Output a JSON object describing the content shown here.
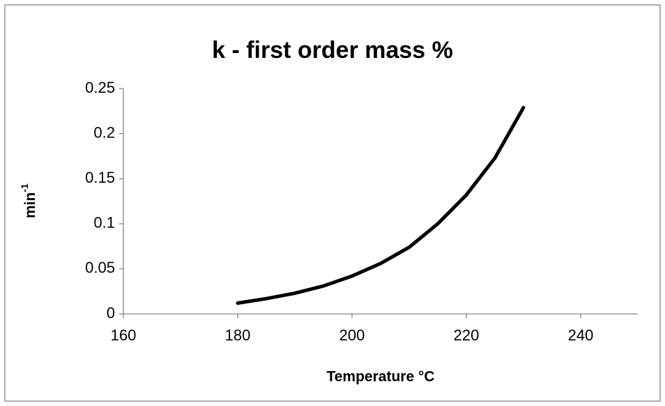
{
  "chart_data": {
    "type": "line",
    "title": "k - first order mass %",
    "xlabel": "Temperature °C",
    "ylabel": "min",
    "ylabel_sup": "-1",
    "x": [
      180,
      185,
      190,
      195,
      200,
      205,
      210,
      215,
      220,
      225,
      230
    ],
    "series": [
      {
        "name": "k",
        "color": "#000000",
        "values": [
          0.012,
          0.017,
          0.023,
          0.031,
          0.042,
          0.056,
          0.074,
          0.1,
          0.132,
          0.173,
          0.229
        ]
      }
    ],
    "xlim": [
      160,
      250
    ],
    "xticks": [
      160,
      180,
      200,
      220,
      240
    ],
    "ylim": [
      0,
      0.25
    ],
    "yticks": [
      0,
      0.05,
      0.1,
      0.15,
      0.2,
      0.25
    ],
    "grid": false,
    "legend": false
  }
}
